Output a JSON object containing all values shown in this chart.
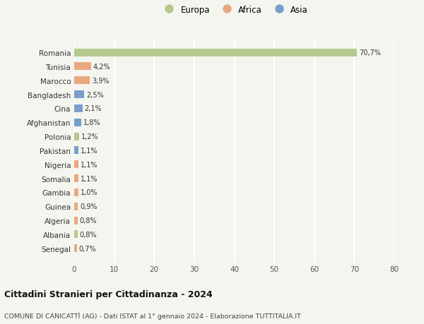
{
  "countries": [
    "Romania",
    "Tunisia",
    "Marocco",
    "Bangladesh",
    "Cina",
    "Afghanistan",
    "Polonia",
    "Pakistan",
    "Nigeria",
    "Somalia",
    "Gambia",
    "Guinea",
    "Algeria",
    "Albania",
    "Senegal"
  ],
  "values": [
    70.7,
    4.2,
    3.9,
    2.5,
    2.1,
    1.8,
    1.2,
    1.1,
    1.1,
    1.1,
    1.0,
    0.9,
    0.8,
    0.8,
    0.7
  ],
  "labels": [
    "70,7%",
    "4,2%",
    "3,9%",
    "2,5%",
    "2,1%",
    "1,8%",
    "1,2%",
    "1,1%",
    "1,1%",
    "1,1%",
    "1,0%",
    "0,9%",
    "0,8%",
    "0,8%",
    "0,7%"
  ],
  "continents": [
    "Europa",
    "Africa",
    "Africa",
    "Asia",
    "Asia",
    "Asia",
    "Europa",
    "Asia",
    "Africa",
    "Africa",
    "Africa",
    "Africa",
    "Africa",
    "Europa",
    "Africa"
  ],
  "colors": {
    "Europa": "#b5c98e",
    "Africa": "#e8a97e",
    "Asia": "#7a9ec9"
  },
  "xlim": [
    0,
    80
  ],
  "xticks": [
    0,
    10,
    20,
    30,
    40,
    50,
    60,
    70,
    80
  ],
  "title": "Cittadini Stranieri per Cittadinanza - 2024",
  "subtitle": "COMUNE DI CANICATTÌ (AG) - Dati ISTAT al 1° gennaio 2024 - Elaborazione TUTTITALIA.IT",
  "background_color": "#f5f5f0",
  "grid_color": "#ffffff",
  "bar_height": 0.55
}
